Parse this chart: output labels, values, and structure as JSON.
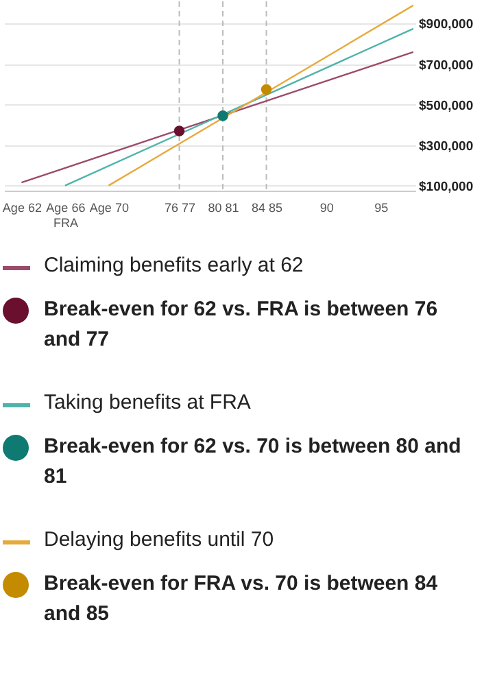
{
  "chart_data": {
    "type": "line",
    "series": [
      {
        "name": "Claiming benefits early at 62",
        "color": "#9b4a6a",
        "x": [
          62,
          98
        ],
        "values": [
          115000,
          760000
        ]
      },
      {
        "name": "Break-even for 62 vs. FRA is between 76 and 77",
        "type": "scatter",
        "color": "#6b0f2e",
        "x": [
          76.5
        ],
        "values": [
          370000
        ]
      },
      {
        "name": "Taking benefits at FRA",
        "color": "#4fb3aa",
        "x": [
          66,
          98
        ],
        "values": [
          100000,
          875000
        ]
      },
      {
        "name": "Break-even for 62 vs. 70 is between 80 and 81",
        "type": "scatter",
        "color": "#0f7a72",
        "x": [
          80.5
        ],
        "values": [
          445000
        ]
      },
      {
        "name": "Delaying benefits until 70",
        "color": "#e6aa3c",
        "x": [
          70,
          98
        ],
        "values": [
          100000,
          990000
        ]
      },
      {
        "name": "Break-even for FRA vs. 70 is between 84 and 85",
        "type": "scatter",
        "color": "#c48a00",
        "x": [
          84.5
        ],
        "values": [
          575000
        ]
      }
    ],
    "xlim": [
      60.4,
      98.2
    ],
    "xticks": [
      {
        "value": 62,
        "label": "Age 62"
      },
      {
        "value": 66,
        "label": "Age 66\nFRA"
      },
      {
        "value": 70,
        "label": "Age 70"
      },
      {
        "value": 76.5,
        "label": "76 77"
      },
      {
        "value": 80.5,
        "label": "80 81"
      },
      {
        "value": 84.5,
        "label": "84 85"
      },
      90,
      95
    ],
    "ylim": [
      75000,
      1010000
    ],
    "yticks": [
      {
        "value": 100000,
        "label": "$100,000"
      },
      {
        "value": 300000,
        "label": "$300,000"
      },
      {
        "value": 500000,
        "label": "$500,000"
      },
      {
        "value": 700000,
        "label": "$700,000"
      },
      {
        "value": 900000,
        "label": "$900,000"
      }
    ],
    "ref_lines": [
      {
        "axis": "x",
        "value": 76.5,
        "color": "#bbbbbb",
        "line_style": "dashed"
      },
      {
        "axis": "x",
        "value": 80.5,
        "color": "#bbbbbb",
        "line_style": "dashed"
      },
      {
        "axis": "x",
        "value": 84.5,
        "color": "#bbbbbb",
        "line_style": "dashed"
      }
    ],
    "grid": "y",
    "legend": "bottom",
    "line_style": "solid"
  }
}
